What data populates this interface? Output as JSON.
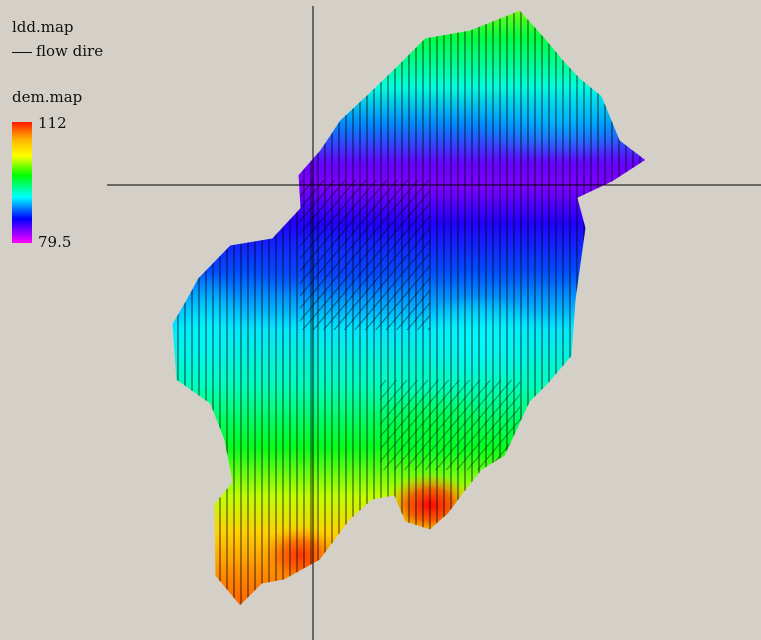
{
  "legend": {
    "ldd_title": "ldd.map",
    "flow_label": "flow dire",
    "dem_title": "dem.map",
    "max_label": "112",
    "min_label": "79.5"
  },
  "colors": {
    "background": "#d4d0c8",
    "ramp": [
      "#ff1a00",
      "#ffb000",
      "#ffff00",
      "#00ff00",
      "#00ffff",
      "#0000ff",
      "#ff00ff"
    ],
    "flow_lines": "#000000",
    "crosshair": "#000000"
  },
  "map": {
    "layers": [
      "ldd.map",
      "dem.map"
    ],
    "dem_range": [
      79.5,
      112
    ]
  }
}
